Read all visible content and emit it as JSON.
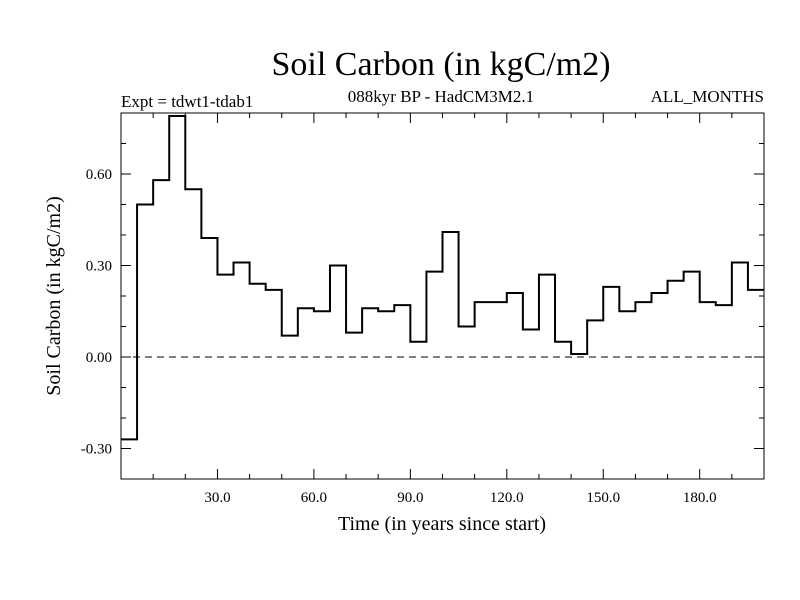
{
  "chart_data": {
    "type": "line",
    "step": true,
    "title": "Soil Carbon (in kgC/m2)",
    "subtitle_left": "Expt = tdwt1-tdab1",
    "subtitle_center": "088kyr BP - HadCM3M2.1",
    "subtitle_right": "ALL_MONTHS",
    "xlabel": "Time (in years since start)",
    "ylabel": "Soil Carbon (in kgC/m2)",
    "xlim": [
      0,
      200
    ],
    "ylim": [
      -0.4,
      0.8
    ],
    "xticks": [
      30,
      60,
      90,
      120,
      150,
      180
    ],
    "xtick_labels": [
      "30.0",
      "60.0",
      "90.0",
      "120.0",
      "150.0",
      "180.0"
    ],
    "yticks": [
      -0.3,
      0.0,
      0.3,
      0.6
    ],
    "ytick_labels": [
      "-0.30",
      "0.00",
      "0.30",
      "0.60"
    ],
    "zero_line": "dashed",
    "grid": false,
    "series": [
      {
        "x": [
          0,
          5,
          10,
          15,
          20,
          25,
          30,
          35,
          40,
          45,
          50,
          55,
          60,
          65,
          70,
          75,
          80,
          85,
          90,
          95,
          100,
          105,
          110,
          115,
          120,
          125,
          130,
          135,
          140,
          145,
          150,
          155,
          160,
          165,
          170,
          175,
          180,
          185,
          190,
          195
        ],
        "y": [
          -0.27,
          0.5,
          0.58,
          0.79,
          0.55,
          0.39,
          0.27,
          0.31,
          0.24,
          0.22,
          0.07,
          0.16,
          0.15,
          0.3,
          0.08,
          0.16,
          0.15,
          0.17,
          0.05,
          0.28,
          0.41,
          0.1,
          0.18,
          0.18,
          0.21,
          0.09,
          0.27,
          0.05,
          0.01,
          0.12,
          0.23,
          0.15,
          0.18,
          0.21,
          0.25,
          0.28,
          0.18,
          0.17,
          0.31,
          0.22
        ]
      }
    ]
  }
}
